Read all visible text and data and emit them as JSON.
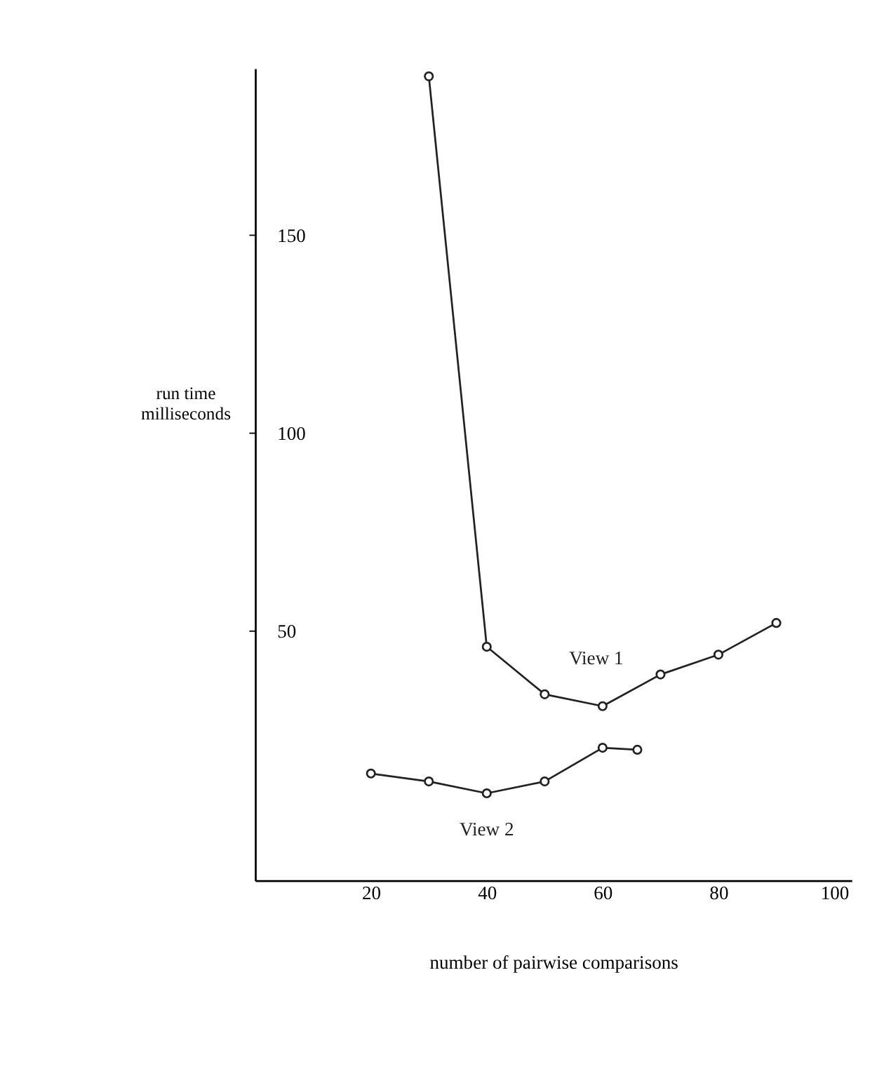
{
  "chart_data": {
    "type": "line",
    "xlabel": "number of pairwise comparisons",
    "ylabel": "run time\nmilliseconds",
    "xlim": [
      0,
      103
    ],
    "xticks": [
      20,
      40,
      60,
      80,
      100
    ],
    "ylim": [
      -13,
      192
    ],
    "yticks": [
      50,
      100,
      150
    ],
    "marker": "circle",
    "line_style": "solid",
    "grid": false,
    "legend": false,
    "series": [
      {
        "name": "View 1",
        "color": "#222222",
        "x": [
          30,
          40,
          50,
          60,
          70,
          80,
          90
        ],
        "values": [
          190,
          46,
          34,
          31,
          39,
          44,
          52
        ]
      },
      {
        "name": "View 2",
        "color": "#222222",
        "x": [
          20,
          30,
          40,
          50,
          60,
          66
        ],
        "values": [
          14,
          12,
          9,
          12,
          20.5,
          20
        ]
      }
    ]
  }
}
